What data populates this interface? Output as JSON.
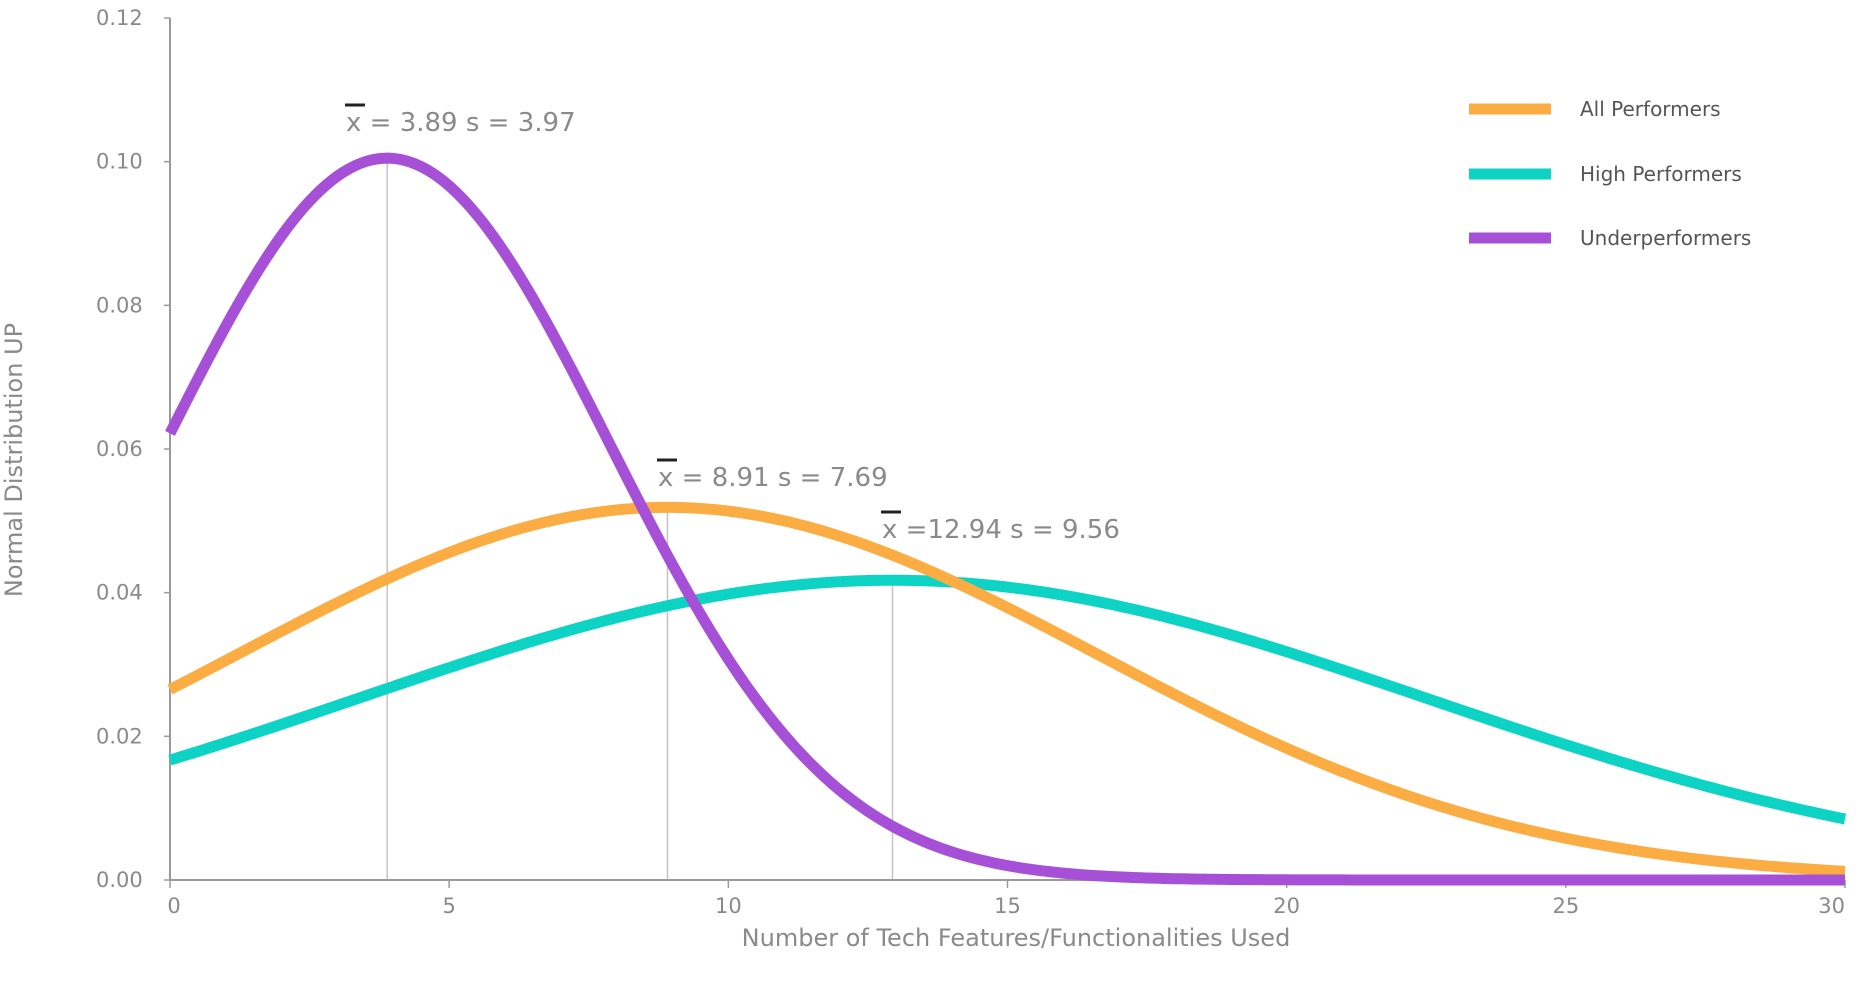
{
  "chart_data": {
    "type": "line",
    "xlabel": "Number of Tech Features/Functionalities Used",
    "ylabel": "Normal Distribution UP",
    "xlim": [
      0,
      30
    ],
    "ylim": [
      0,
      0.12
    ],
    "x_ticks": [
      "0",
      "5",
      "10",
      "15",
      "20",
      "25",
      "30"
    ],
    "y_ticks": [
      "0.00",
      "0.02",
      "0.04",
      "0.06",
      "0.08",
      "0.10",
      "0.12"
    ],
    "grid": false,
    "legend_position": "top-right",
    "series": [
      {
        "name": "All Performers",
        "color": "#fbad44",
        "mean": 8.91,
        "sd": 7.69,
        "annotation": {
          "x_symbol": "x",
          "text": " = 8.91   s = 7.69"
        }
      },
      {
        "name": "High Performers",
        "color": "#0dd3c5",
        "mean": 12.94,
        "sd": 9.56,
        "annotation": {
          "x_symbol": "x",
          "text": " =12.94 s = 9.56"
        }
      },
      {
        "name": "Underperformers",
        "color": "#a550d6",
        "mean": 3.89,
        "sd": 3.97,
        "annotation": {
          "x_symbol": "x",
          "text": " = 3.89   s = 3.97"
        }
      }
    ]
  }
}
